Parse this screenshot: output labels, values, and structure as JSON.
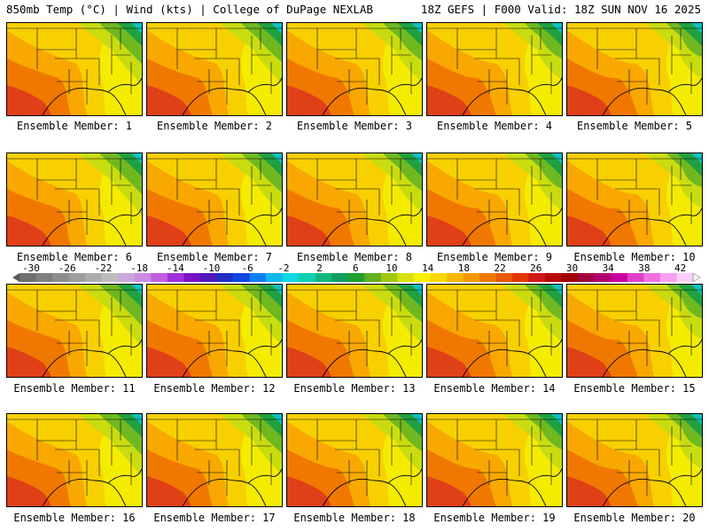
{
  "header": {
    "left": "850mb Temp (°C) | Wind (kts) | College of DuPage NEXLAB",
    "right": "18Z GEFS | F000 Valid: 18Z SUN NOV 16 2025"
  },
  "panels": [
    {
      "caption": "Ensemble Member: 1"
    },
    {
      "caption": "Ensemble Member: 2"
    },
    {
      "caption": "Ensemble Member: 3"
    },
    {
      "caption": "Ensemble Member: 4"
    },
    {
      "caption": "Ensemble Member: 5"
    },
    {
      "caption": "Ensemble Member: 6"
    },
    {
      "caption": "Ensemble Member: 7"
    },
    {
      "caption": "Ensemble Member: 8"
    },
    {
      "caption": "Ensemble Member: 9"
    },
    {
      "caption": "Ensemble Member: 10"
    },
    {
      "caption": "Ensemble Member: 11"
    },
    {
      "caption": "Ensemble Member: 12"
    },
    {
      "caption": "Ensemble Member: 13"
    },
    {
      "caption": "Ensemble Member: 14"
    },
    {
      "caption": "Ensemble Member: 15"
    },
    {
      "caption": "Ensemble Member: 16"
    },
    {
      "caption": "Ensemble Member: 17"
    },
    {
      "caption": "Ensemble Member: 18"
    },
    {
      "caption": "Ensemble Member: 19"
    },
    {
      "caption": "Ensemble Member: 20"
    }
  ],
  "colorbar": {
    "labels": [
      "-30",
      "-26",
      "-22",
      "-18",
      "-14",
      "-10",
      "-6",
      "-2",
      "2",
      "6",
      "10",
      "14",
      "18",
      "22",
      "26",
      "30",
      "34",
      "38",
      "42"
    ],
    "colors": [
      "#707070",
      "#7f7f7f",
      "#8e8e8e",
      "#9d9d9d",
      "#acacac",
      "#bcbcbc",
      "#c9a9d9",
      "#c98ce0",
      "#c45fe0",
      "#a030d8",
      "#7a10c8",
      "#5018b8",
      "#2030c0",
      "#1048e0",
      "#1080f0",
      "#10b8f0",
      "#10d8e0",
      "#10d0b0",
      "#10b880",
      "#10a060",
      "#20a030",
      "#60b020",
      "#a0c810",
      "#d8e010",
      "#f8f000",
      "#f8d800",
      "#f8b800",
      "#f89800",
      "#f07800",
      "#e85800",
      "#e03800",
      "#d01818",
      "#b80808",
      "#a00000",
      "#a00040",
      "#b00070",
      "#c800a0",
      "#e040c8",
      "#f070e0",
      "#f8a0f0",
      "#f8d0f8"
    ],
    "left_arrow_color": "#5a5a5a",
    "right_arrow_color": "#f8f0f8"
  }
}
